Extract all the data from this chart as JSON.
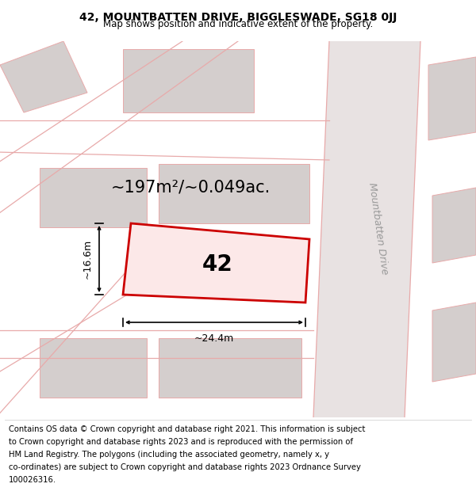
{
  "title": "42, MOUNTBATTEN DRIVE, BIGGLESWADE, SG18 0JJ",
  "subtitle": "Map shows position and indicative extent of the property.",
  "area_text": "~197m²/~0.049ac.",
  "label_42": "42",
  "dim_width": "~24.4m",
  "dim_height": "~16.6m",
  "road_label": "Mountbatten Drive",
  "copyright_lines": [
    "Contains OS data © Crown copyright and database right 2021. This information is subject",
    "to Crown copyright and database rights 2023 and is reproduced with the permission of",
    "HM Land Registry. The polygons (including the associated geometry, namely x, y",
    "co-ordinates) are subject to Crown copyright and database rights 2023 Ordnance Survey",
    "100026316."
  ],
  "map_bg": "#f5f0f0",
  "road_fill": "#e8e2e2",
  "building_fill": "#d4cecd",
  "plot_fill": "#fce8e8",
  "plot_edge": "#cc0000",
  "pink": "#e8aaaa",
  "title_fontsize": 10,
  "subtitle_fontsize": 8.5,
  "area_fontsize": 15,
  "label_fontsize": 20,
  "dim_fontsize": 9,
  "road_label_fontsize": 9,
  "copy_fontsize": 7.2
}
